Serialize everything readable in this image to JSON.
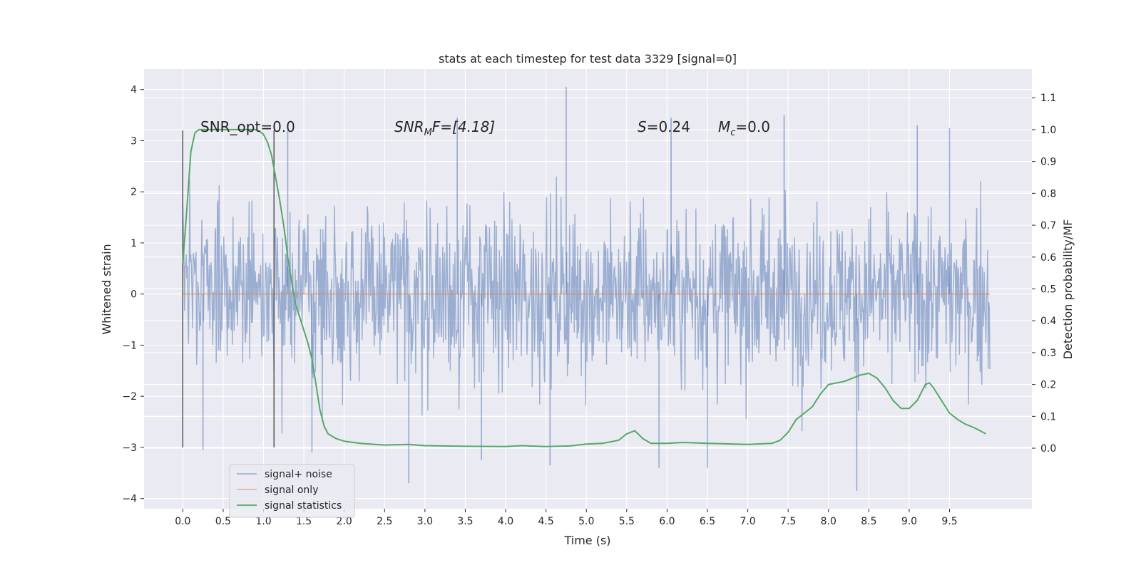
{
  "chart_data": {
    "type": "line",
    "title": "stats at each timestep for test data 3329 [signal=0]",
    "xlabel": "Time (s)",
    "ylabel": "Whitened strain",
    "ylabel_right": "Detection probability/MF",
    "xlim": [
      -0.48,
      10.52
    ],
    "ylim": [
      -4.2,
      4.4
    ],
    "ylim_right": [
      -0.19,
      1.19
    ],
    "x_ticks": [
      0.0,
      0.5,
      1.0,
      1.5,
      2.0,
      2.5,
      3.0,
      3.5,
      4.0,
      4.5,
      5.0,
      5.5,
      6.0,
      6.5,
      7.0,
      7.5,
      8.0,
      8.5,
      9.0,
      9.5
    ],
    "x_tick_labels": [
      "0.0",
      "0.5",
      "1.0",
      "1.5",
      "2.0",
      "2.5",
      "3.0",
      "3.5",
      "4.0",
      "4.5",
      "5.0",
      "5.5",
      "6.0",
      "6.5",
      "7.0",
      "7.5",
      "8.0",
      "8.5",
      "9.0",
      "9.5"
    ],
    "y_ticks": [
      -4,
      -3,
      -2,
      -1,
      0,
      1,
      2,
      3,
      4
    ],
    "y_tick_labels": [
      "−4",
      "−3",
      "−2",
      "−1",
      "0",
      "1",
      "2",
      "3",
      "4"
    ],
    "y_ticks_right": [
      0.0,
      0.1,
      0.2,
      0.3,
      0.4,
      0.5,
      0.6,
      0.7,
      0.8,
      0.9,
      1.0,
      1.1
    ],
    "y_tick_labels_right": [
      "0.0",
      "0.1",
      "0.2",
      "0.3",
      "0.4",
      "0.5",
      "0.6",
      "0.7",
      "0.8",
      "0.9",
      "1.0",
      "1.1"
    ],
    "grid": true,
    "legend_position": "lower-left",
    "annotations": {
      "snr_opt": "SNR_opt=0.0",
      "snr_mf_main": "SNR",
      "snr_mf_sub": "M",
      "snr_mf_rest": "F=[4.18]",
      "s_var": "S",
      "s_val": "=0.24",
      "mc_var": "M",
      "mc_sub": "c",
      "mc_val": "=0.0"
    },
    "vertical_markers": [
      {
        "x": 0.0,
        "y_range": [
          -3.0,
          3.2
        ]
      },
      {
        "x": 1.13,
        "y_range": [
          -3.0,
          3.2
        ]
      }
    ],
    "series": [
      {
        "name": "signal+ noise",
        "color": "#4c72b0",
        "kind": "noise",
        "x_range": [
          0.0,
          10.0
        ],
        "sample_count": 1400,
        "typical_range": [
          -1.9,
          1.9
        ],
        "extremes": [
          {
            "x": 4.75,
            "y": 4.05
          },
          {
            "x": 3.4,
            "y": 3.45
          },
          {
            "x": 7.45,
            "y": 3.5
          },
          {
            "x": 6.05,
            "y": 3.45
          },
          {
            "x": 9.1,
            "y": 3.3
          },
          {
            "x": 9.5,
            "y": 3.25
          },
          {
            "x": 1.3,
            "y": 3.2
          },
          {
            "x": 2.8,
            "y": -3.7
          },
          {
            "x": 8.35,
            "y": -3.85
          },
          {
            "x": 3.7,
            "y": -3.25
          },
          {
            "x": 6.5,
            "y": -3.4
          },
          {
            "x": 5.9,
            "y": -3.4
          },
          {
            "x": 0.25,
            "y": -3.05
          },
          {
            "x": 4.55,
            "y": -3.35
          },
          {
            "x": 1.6,
            "y": -3.1
          }
        ]
      },
      {
        "name": "signal only",
        "color": "#dd8452",
        "x": [
          0.0,
          10.0
        ],
        "y": [
          0.0,
          0.0
        ]
      },
      {
        "name": "signal statistics",
        "color": "#55a868",
        "axis": "right",
        "x": [
          0.0,
          0.05,
          0.1,
          0.15,
          0.2,
          0.3,
          0.5,
          0.7,
          0.9,
          0.95,
          1.0,
          1.05,
          1.1,
          1.15,
          1.2,
          1.25,
          1.3,
          1.35,
          1.4,
          1.5,
          1.55,
          1.6,
          1.65,
          1.7,
          1.75,
          1.8,
          1.9,
          2.0,
          2.2,
          2.5,
          2.8,
          3.0,
          3.5,
          4.0,
          4.2,
          4.5,
          4.8,
          5.0,
          5.2,
          5.4,
          5.5,
          5.6,
          5.7,
          5.8,
          6.0,
          6.2,
          6.5,
          7.0,
          7.3,
          7.4,
          7.5,
          7.6,
          7.7,
          7.8,
          7.9,
          8.0,
          8.2,
          8.4,
          8.5,
          8.6,
          8.7,
          8.8,
          8.9,
          9.0,
          9.1,
          9.2,
          9.25,
          9.3,
          9.4,
          9.5,
          9.6,
          9.7,
          9.8,
          9.95
        ],
        "y": [
          0.58,
          0.75,
          0.93,
          0.99,
          1.0,
          1.0,
          1.0,
          1.0,
          1.0,
          0.995,
          0.985,
          0.96,
          0.92,
          0.85,
          0.78,
          0.7,
          0.6,
          0.52,
          0.45,
          0.37,
          0.33,
          0.28,
          0.2,
          0.12,
          0.07,
          0.045,
          0.03,
          0.022,
          0.015,
          0.01,
          0.012,
          0.008,
          0.006,
          0.005,
          0.008,
          0.005,
          0.007,
          0.013,
          0.015,
          0.025,
          0.045,
          0.055,
          0.03,
          0.015,
          0.015,
          0.018,
          0.015,
          0.012,
          0.015,
          0.025,
          0.05,
          0.09,
          0.11,
          0.13,
          0.17,
          0.2,
          0.21,
          0.23,
          0.235,
          0.22,
          0.19,
          0.15,
          0.125,
          0.125,
          0.15,
          0.2,
          0.205,
          0.19,
          0.15,
          0.11,
          0.09,
          0.075,
          0.065,
          0.045
        ]
      }
    ]
  }
}
